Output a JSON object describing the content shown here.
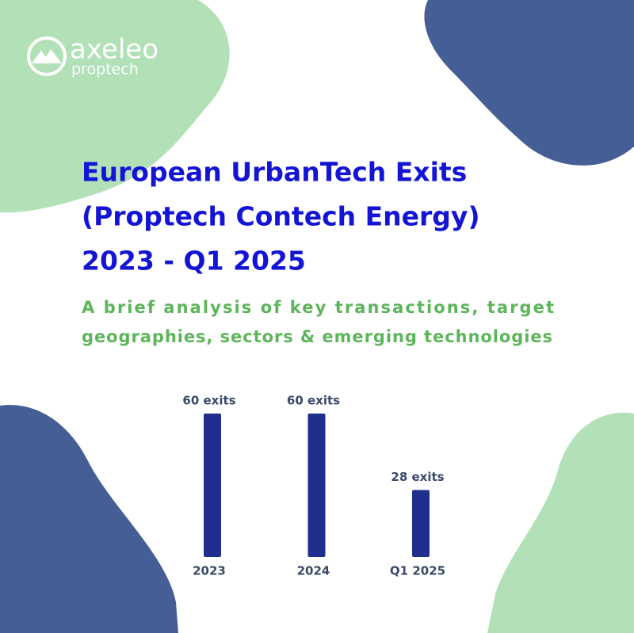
{
  "logo": {
    "name": "axeleo",
    "tagline": "proptech"
  },
  "chart_data": {
    "type": "bar",
    "title": [
      "European UrbanTech Exits",
      "(Proptech Contech Energy)",
      "2023 - Q1 2025"
    ],
    "subtitle": [
      "A brief analysis of key transactions, target",
      "geographies, sectors & emerging technologies"
    ],
    "categories": [
      "2023",
      "2024",
      "Q1 2025"
    ],
    "values": [
      60,
      60,
      28
    ],
    "value_labels": [
      "60 exits",
      "60 exits",
      "28 exits"
    ],
    "color": "#202e8e"
  }
}
